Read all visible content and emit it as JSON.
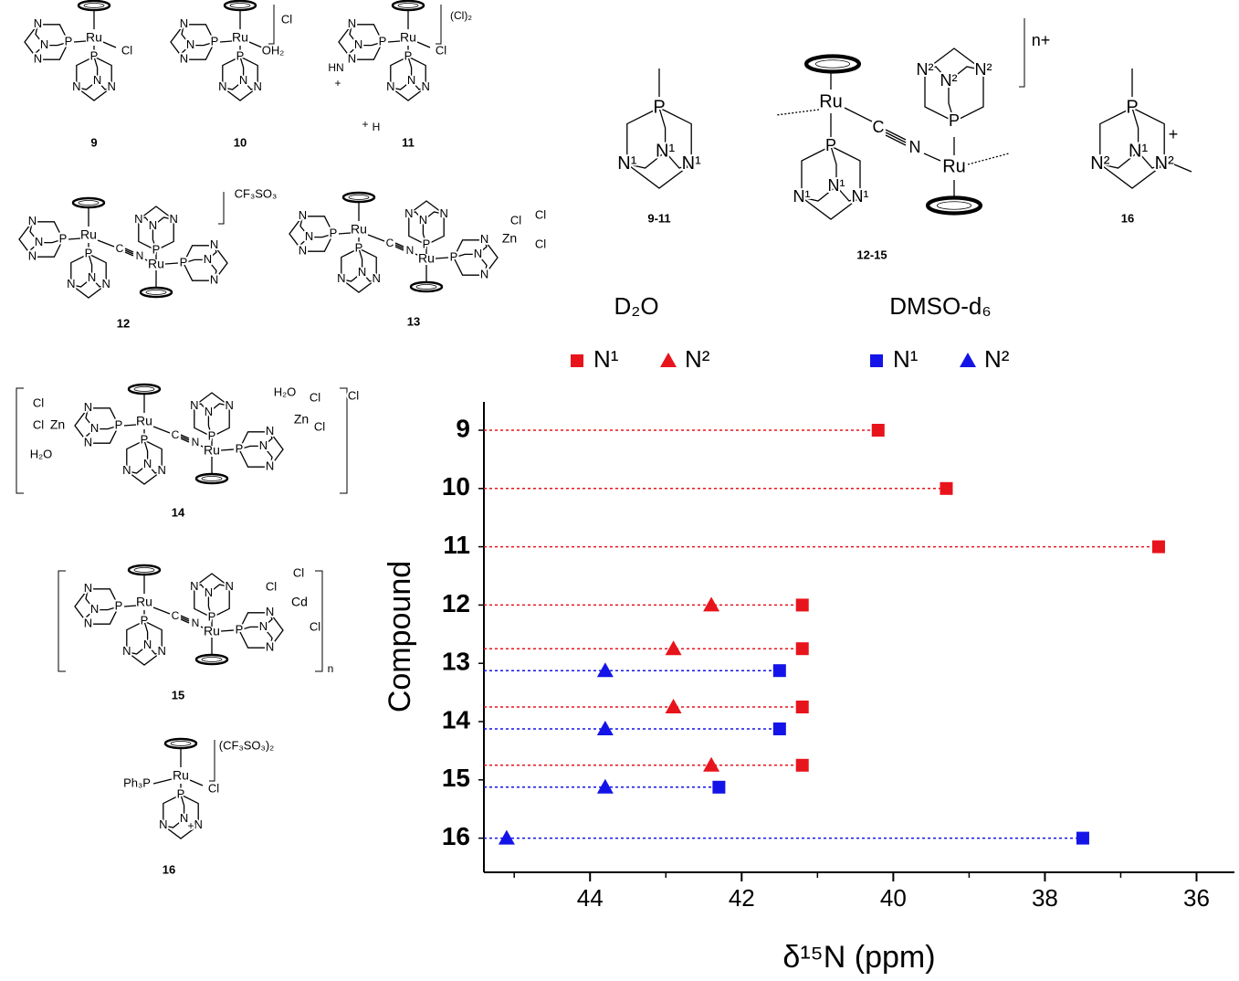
{
  "chart_data": {
    "type": "dot",
    "orientation": "horizontal",
    "categories": [
      "9",
      "10",
      "11",
      "12",
      "13",
      "14",
      "15",
      "16"
    ],
    "groups": [
      {
        "title": "D₂O",
        "series": [
          {
            "name": "N¹",
            "marker": "square",
            "color": "#e8141b",
            "values": [
              40.2,
              39.3,
              36.5,
              41.2,
              41.2,
              41.2,
              41.2,
              null
            ]
          },
          {
            "name": "N²",
            "marker": "triangle",
            "color": "#e8141b",
            "values": [
              null,
              null,
              null,
              42.4,
              42.9,
              42.9,
              42.4,
              null
            ]
          }
        ]
      },
      {
        "title": "DMSO-d₆",
        "series": [
          {
            "name": "N¹",
            "marker": "square",
            "color": "#1414e8",
            "values": [
              null,
              null,
              null,
              null,
              41.5,
              41.5,
              42.3,
              37.5
            ]
          },
          {
            "name": "N²",
            "marker": "triangle",
            "color": "#1414e8",
            "values": [
              null,
              null,
              null,
              null,
              43.8,
              43.8,
              43.8,
              45.1
            ]
          }
        ]
      }
    ],
    "xlabel": "δ¹⁵N (ppm)",
    "ylabel": "Compound",
    "xlim": [
      45.4,
      35.5
    ],
    "xticks": [
      44,
      42,
      40,
      38,
      36
    ],
    "minor_xticks": [
      45,
      43,
      41,
      39,
      37
    ],
    "line_style": "dotted"
  },
  "structures": {
    "atoms": {
      "ru": "Ru",
      "p": "P",
      "n": "N",
      "cl": "Cl",
      "c": "C",
      "zn": "Zn",
      "cd": "Cd",
      "oh2": "OH₂",
      "h2o": "H₂O",
      "hn": "HN",
      "h": "H",
      "plus": "+",
      "ph3p": "Ph₃P",
      "n1": "N¹",
      "n2": "N²",
      "charge": "n+",
      "poly": "n"
    },
    "labels": [
      "9",
      "10",
      "11",
      "12",
      "13",
      "14",
      "15",
      "16",
      "9-11",
      "12-15",
      "16"
    ],
    "counterions": {
      "c10": "Cl",
      "c11": "(Cl)₂",
      "c12": "CF₃SO₃",
      "c14": "Cl",
      "c16": "(CF₃SO₃)₂"
    }
  }
}
